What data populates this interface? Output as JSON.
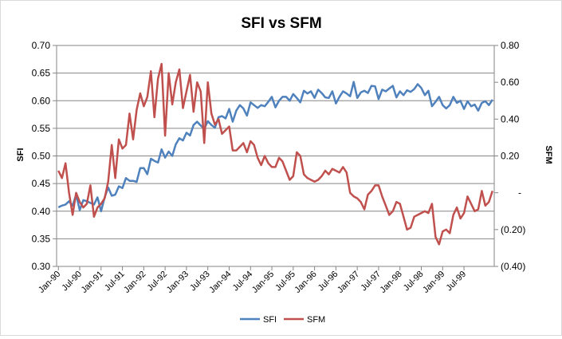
{
  "chart_data": {
    "type": "line",
    "title": "SFI vs SFM",
    "ylabel_left": "SFI",
    "ylabel_right": "SFM",
    "ylim_left": [
      0.3,
      0.7
    ],
    "ylim_right": [
      -0.4,
      0.8
    ],
    "yticks_left": [
      "0.70",
      "0.65",
      "0.60",
      "0.55",
      "0.50",
      "0.45",
      "0.40",
      "0.35",
      "0.30"
    ],
    "yticks_right": [
      "0.80",
      "0.60",
      "0.40",
      "0.20",
      "-",
      "(0.20)",
      "(0.40)"
    ],
    "x_tick_labels": [
      "Jan-90",
      "Jul-90",
      "Jan-91",
      "Jul-91",
      "Jan-92",
      "Jul-92",
      "Jan-93",
      "Jul-93",
      "Jan-94",
      "Jul-94",
      "Jan-95",
      "Jul-95",
      "Jan-96",
      "Jul-96",
      "Jan-97",
      "Jul-97",
      "Jan-98",
      "Jul-98",
      "Jan-99",
      "Jul-99"
    ],
    "x_start": "Jan-90",
    "x_frequency": "monthly",
    "grid": "horizontal major gridlines",
    "legend_position": "bottom",
    "colors": {
      "SFI": "#4f81bd",
      "SFM": "#c0504d",
      "grid": "#868686",
      "axis": "#868686"
    },
    "series": [
      {
        "name": "SFI",
        "axis": "left",
        "values": [
          0.407,
          0.41,
          0.412,
          0.418,
          0.41,
          0.43,
          0.402,
          0.42,
          0.418,
          0.415,
          0.412,
          0.425,
          0.4,
          0.425,
          0.443,
          0.428,
          0.43,
          0.445,
          0.442,
          0.46,
          0.455,
          0.455,
          0.453,
          0.478,
          0.478,
          0.467,
          0.495,
          0.491,
          0.488,
          0.512,
          0.497,
          0.508,
          0.5,
          0.521,
          0.532,
          0.528,
          0.542,
          0.537,
          0.556,
          0.562,
          0.555,
          0.549,
          0.563,
          0.556,
          0.551,
          0.57,
          0.572,
          0.568,
          0.585,
          0.562,
          0.582,
          0.592,
          0.586,
          0.573,
          0.597,
          0.592,
          0.587,
          0.592,
          0.59,
          0.598,
          0.607,
          0.588,
          0.6,
          0.607,
          0.607,
          0.6,
          0.612,
          0.605,
          0.597,
          0.618,
          0.613,
          0.617,
          0.605,
          0.62,
          0.614,
          0.606,
          0.605,
          0.617,
          0.595,
          0.607,
          0.617,
          0.613,
          0.608,
          0.634,
          0.605,
          0.615,
          0.618,
          0.614,
          0.627,
          0.626,
          0.603,
          0.62,
          0.617,
          0.622,
          0.627,
          0.606,
          0.617,
          0.61,
          0.619,
          0.616,
          0.621,
          0.63,
          0.623,
          0.61,
          0.618,
          0.59,
          0.598,
          0.607,
          0.592,
          0.586,
          0.592,
          0.607,
          0.596,
          0.6,
          0.585,
          0.599,
          0.59,
          0.593,
          0.582,
          0.596,
          0.599,
          0.592,
          0.602
        ]
      },
      {
        "name": "SFM",
        "axis": "right",
        "values": [
          0.12,
          0.08,
          0.16,
          0.0,
          -0.12,
          0.0,
          -0.05,
          -0.08,
          -0.06,
          0.04,
          -0.13,
          -0.08,
          -0.06,
          -0.03,
          0.06,
          0.26,
          0.08,
          0.29,
          0.24,
          0.26,
          0.43,
          0.29,
          0.45,
          0.54,
          0.47,
          0.52,
          0.66,
          0.41,
          0.62,
          0.7,
          0.31,
          0.65,
          0.48,
          0.6,
          0.67,
          0.46,
          0.55,
          0.64,
          0.44,
          0.6,
          0.55,
          0.27,
          0.6,
          0.43,
          0.37,
          0.4,
          0.32,
          0.34,
          0.36,
          0.23,
          0.23,
          0.25,
          0.27,
          0.22,
          0.28,
          0.26,
          0.19,
          0.15,
          0.2,
          0.16,
          0.14,
          0.14,
          0.19,
          0.17,
          0.12,
          0.07,
          0.09,
          0.22,
          0.2,
          0.1,
          0.08,
          0.07,
          0.06,
          0.07,
          0.09,
          0.12,
          0.1,
          0.13,
          0.12,
          0.11,
          0.14,
          0.11,
          0.0,
          -0.02,
          -0.03,
          -0.05,
          -0.09,
          -0.01,
          0.01,
          0.04,
          0.04,
          -0.02,
          -0.07,
          -0.12,
          -0.1,
          -0.05,
          -0.06,
          -0.13,
          -0.2,
          -0.19,
          -0.13,
          -0.12,
          -0.11,
          -0.1,
          -0.11,
          -0.06,
          -0.24,
          -0.28,
          -0.21,
          -0.2,
          -0.22,
          -0.12,
          -0.08,
          -0.14,
          -0.11,
          -0.02,
          -0.06,
          -0.1,
          -0.09,
          0.01,
          -0.07,
          -0.05,
          0.01
        ]
      }
    ]
  }
}
